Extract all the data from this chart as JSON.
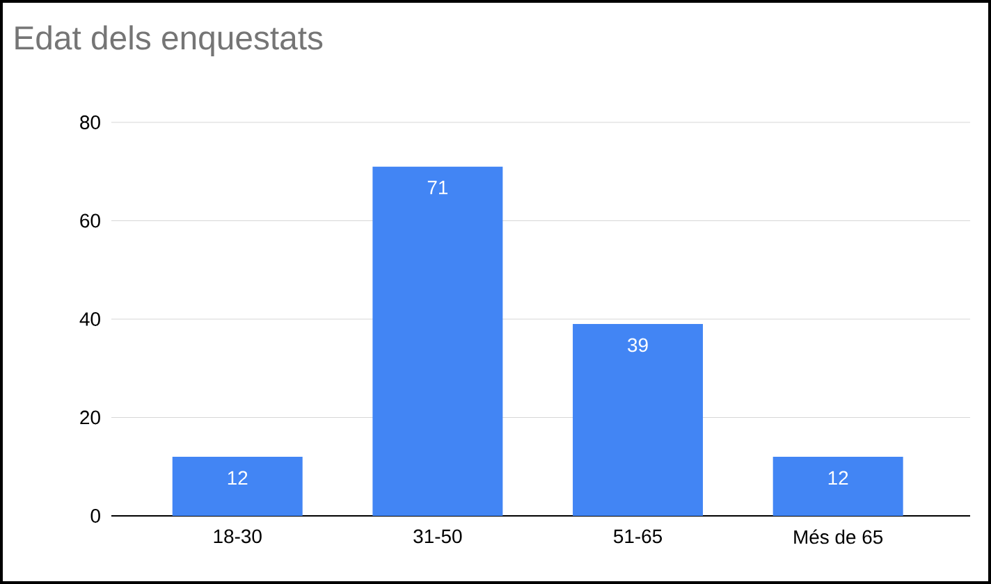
{
  "chart_data": {
    "type": "bar",
    "title": "Edat dels enquestats",
    "categories": [
      "18-30",
      "31-50",
      "51-65",
      "Més de 65"
    ],
    "values": [
      12,
      71,
      39,
      12
    ],
    "color": "#4285f4",
    "ylim": [
      0,
      80
    ],
    "yticks": [
      0,
      20,
      40,
      60,
      80
    ],
    "grid": "y",
    "data_labels": true
  }
}
